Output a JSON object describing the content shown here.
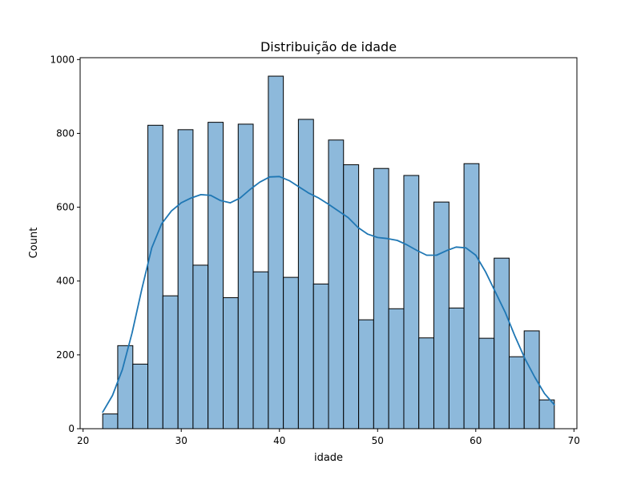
{
  "chart_data": {
    "type": "bar",
    "title": "Distribuição de idade",
    "xlabel": "idade",
    "ylabel": "Count",
    "xlim": [
      19.7,
      70.3
    ],
    "ylim": [
      0,
      1005
    ],
    "x_ticks": [
      20,
      30,
      40,
      50,
      60,
      70
    ],
    "y_ticks": [
      0,
      200,
      400,
      600,
      800,
      1000
    ],
    "bin_edges": [
      22,
      23.53,
      25.07,
      26.6,
      28.13,
      29.67,
      31.2,
      32.73,
      34.27,
      35.8,
      37.33,
      38.87,
      40.4,
      41.93,
      43.47,
      45,
      46.53,
      48.07,
      49.6,
      51.13,
      52.67,
      54.2,
      55.73,
      57.27,
      58.8,
      60.33,
      61.87,
      63.4,
      64.93,
      66.47,
      68
    ],
    "counts": [
      40,
      225,
      175,
      822,
      360,
      810,
      443,
      830,
      355,
      825,
      425,
      955,
      410,
      838,
      392,
      782,
      715,
      295,
      705,
      325,
      686,
      246,
      614,
      327,
      718,
      245,
      462,
      195,
      265,
      78
    ],
    "kde": {
      "x": [
        22,
        23,
        24,
        25,
        26,
        27,
        28,
        29,
        30,
        31,
        32,
        33,
        34,
        35,
        36,
        37,
        38,
        39,
        40,
        41,
        42,
        43,
        44,
        45,
        46,
        47,
        48,
        49,
        50,
        51,
        52,
        53,
        54,
        55,
        56,
        57,
        58,
        59,
        60,
        61,
        62,
        63,
        64,
        65,
        66,
        67,
        68
      ],
      "y": [
        45,
        90,
        160,
        260,
        380,
        490,
        555,
        590,
        612,
        625,
        634,
        632,
        618,
        612,
        625,
        648,
        668,
        682,
        683,
        672,
        655,
        638,
        625,
        608,
        590,
        572,
        545,
        527,
        518,
        515,
        510,
        498,
        483,
        470,
        470,
        482,
        492,
        490,
        470,
        425,
        370,
        315,
        250,
        190,
        140,
        95,
        65
      ]
    },
    "colors": {
      "bar_fill": "#8db9db",
      "bar_edge": "#000000",
      "kde_line": "#1f77b4"
    },
    "grid": false,
    "legend": "none"
  }
}
